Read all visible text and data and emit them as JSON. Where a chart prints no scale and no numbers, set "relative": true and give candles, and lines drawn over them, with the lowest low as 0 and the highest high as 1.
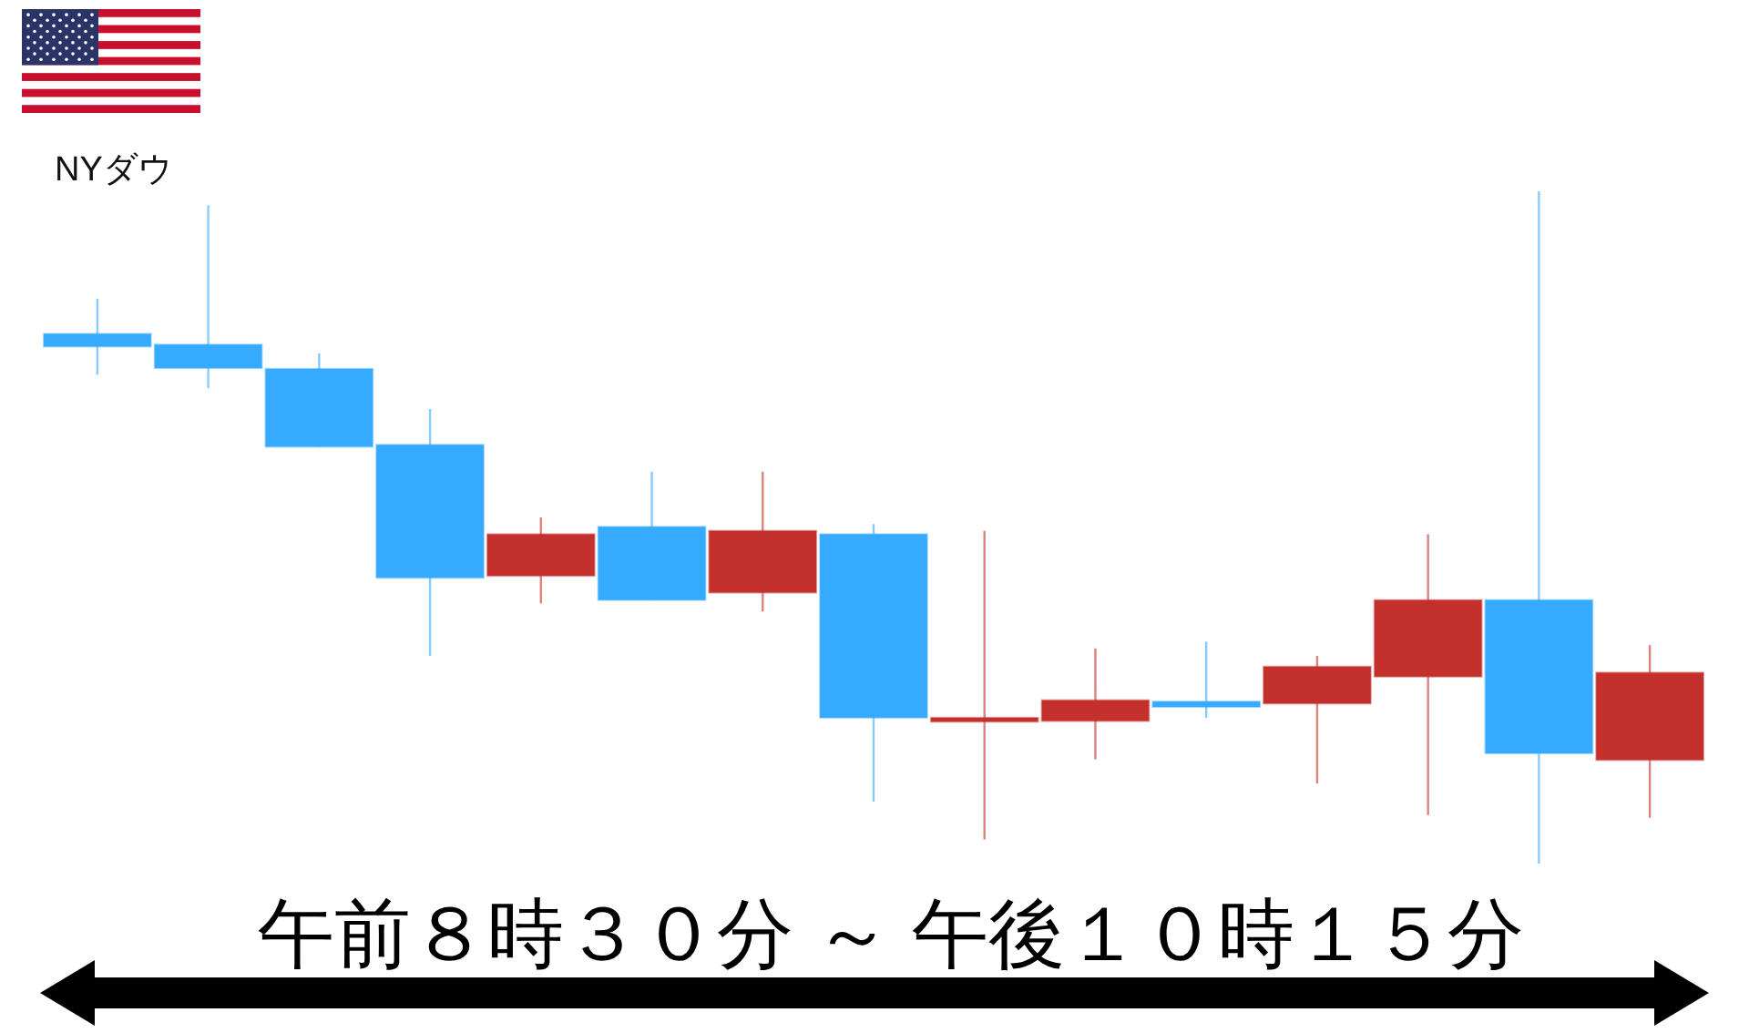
{
  "chart_data": {
    "type": "candlestick",
    "title": "NYダウ",
    "xlabel": "午前８時３０分 ～ 午後１０時１５分",
    "relative": true,
    "categories": [
      null,
      null,
      null,
      null,
      null,
      null,
      null,
      null,
      null,
      null,
      null,
      null,
      null,
      null,
      null
    ],
    "ohlc": [
      [
        0.788,
        0.84,
        0.727,
        0.769
      ],
      [
        0.772,
        0.979,
        0.707,
        0.737
      ],
      [
        0.736,
        0.759,
        0.62,
        0.62
      ],
      [
        0.623,
        0.676,
        0.309,
        0.425
      ],
      [
        0.428,
        0.515,
        0.387,
        0.49
      ],
      [
        0.501,
        0.583,
        0.392,
        0.392
      ],
      [
        0.403,
        0.583,
        0.375,
        0.495
      ],
      [
        0.49,
        0.505,
        0.092,
        0.217
      ],
      [
        0.211,
        0.495,
        0.036,
        0.217
      ],
      [
        0.212,
        0.32,
        0.155,
        0.243
      ],
      [
        0.241,
        0.33,
        0.217,
        0.233
      ],
      [
        0.238,
        0.309,
        0.119,
        0.293
      ],
      [
        0.278,
        0.49,
        0.072,
        0.392
      ],
      [
        0.392,
        1,
        0,
        0.164
      ],
      [
        0.154,
        0.325,
        0.068,
        0.284
      ]
    ],
    "colors": [
      "#36aaff",
      "#36aaff",
      "#36aaff",
      "#36aaff",
      "#c4302c",
      "#36aaff",
      "#c4302c",
      "#36aaff",
      "#c4302c",
      "#c4302c",
      "#36aaff",
      "#c4302c",
      "#c4302c",
      "#36aaff",
      "#c4302c"
    ]
  }
}
